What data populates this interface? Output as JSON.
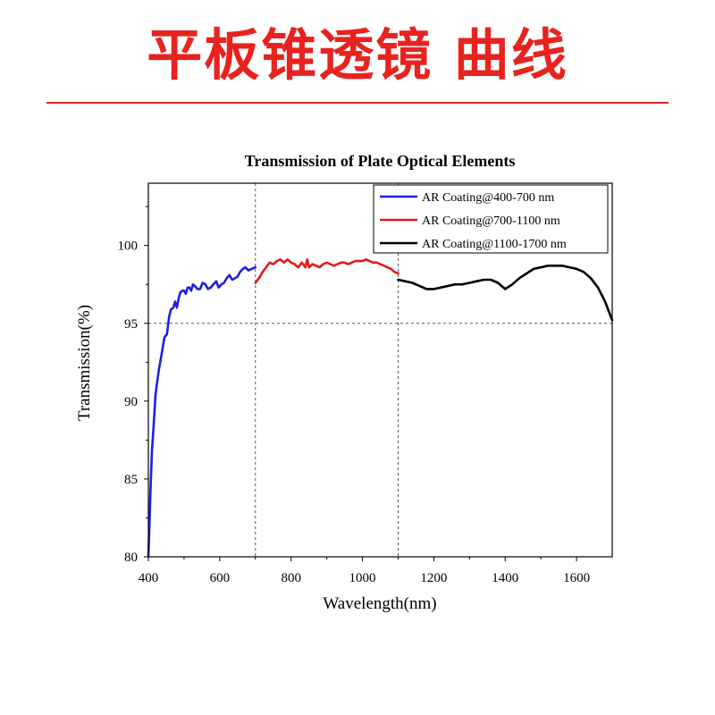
{
  "banner": {
    "title": "平板锥透镜 曲线",
    "accent_color": "#e8231f"
  },
  "chart_data": {
    "type": "line",
    "title": "Transmission of Plate Optical Elements",
    "xlabel": "Wavelength(nm)",
    "ylabel": "Transmission(%)",
    "xlim": [
      400,
      1700
    ],
    "ylim": [
      80,
      104
    ],
    "x_ticks": [
      400,
      600,
      800,
      1000,
      1200,
      1400,
      1600
    ],
    "y_ticks": [
      80,
      85,
      90,
      95,
      100
    ],
    "reference_lines": {
      "x": [
        700,
        1100
      ],
      "y": [
        95
      ]
    },
    "legend_position": "top-right",
    "grid": false,
    "series": [
      {
        "name": "AR Coating@400-700 nm",
        "color": "#1f1fe0",
        "x": [
          400,
          403,
          406,
          410,
          415,
          420,
          425,
          430,
          437,
          445,
          452,
          458,
          463,
          470,
          475,
          480,
          485,
          490,
          496,
          500,
          505,
          510,
          515,
          520,
          525,
          530,
          538,
          545,
          552,
          560,
          567,
          575,
          582,
          590,
          597,
          605,
          612,
          620,
          627,
          635,
          643,
          650,
          657,
          665,
          672,
          680,
          690,
          700
        ],
        "y": [
          80.0,
          82.0,
          84.3,
          86.8,
          88.5,
          90.4,
          91.3,
          92.1,
          93.0,
          94.1,
          94.3,
          95.4,
          95.9,
          96.0,
          96.4,
          96.0,
          96.6,
          97.0,
          97.1,
          97.1,
          96.9,
          97.3,
          97.3,
          97.1,
          97.5,
          97.4,
          97.2,
          97.2,
          97.6,
          97.5,
          97.2,
          97.3,
          97.5,
          97.7,
          97.3,
          97.5,
          97.6,
          97.9,
          98.1,
          97.8,
          97.9,
          98.0,
          98.3,
          98.5,
          98.6,
          98.4,
          98.5,
          98.6
        ]
      },
      {
        "name": "AR Coating@700-1100 nm",
        "color": "#e21a1a",
        "x": [
          700,
          710,
          720,
          730,
          740,
          750,
          760,
          770,
          780,
          790,
          800,
          810,
          820,
          830,
          840,
          845,
          850,
          860,
          870,
          880,
          890,
          900,
          910,
          920,
          930,
          940,
          950,
          960,
          970,
          980,
          990,
          1000,
          1010,
          1020,
          1030,
          1040,
          1050,
          1060,
          1070,
          1080,
          1090,
          1100
        ],
        "y": [
          97.6,
          97.9,
          98.3,
          98.6,
          98.9,
          98.8,
          99.0,
          99.1,
          98.9,
          99.1,
          98.9,
          98.8,
          98.6,
          98.9,
          98.6,
          99.1,
          98.6,
          98.8,
          98.7,
          98.6,
          98.8,
          98.9,
          98.8,
          98.7,
          98.8,
          98.9,
          98.9,
          98.8,
          98.9,
          99.0,
          99.0,
          99.0,
          99.1,
          99.0,
          98.9,
          98.9,
          98.8,
          98.7,
          98.6,
          98.5,
          98.3,
          98.2
        ]
      },
      {
        "name": "AR Coating@1100-1700 nm",
        "color": "#000000",
        "x": [
          1100,
          1120,
          1140,
          1160,
          1180,
          1200,
          1220,
          1240,
          1260,
          1280,
          1300,
          1320,
          1340,
          1360,
          1380,
          1400,
          1420,
          1440,
          1460,
          1480,
          1500,
          1520,
          1540,
          1560,
          1580,
          1600,
          1620,
          1640,
          1660,
          1680,
          1700
        ],
        "y": [
          97.8,
          97.7,
          97.6,
          97.4,
          97.2,
          97.2,
          97.3,
          97.4,
          97.5,
          97.5,
          97.6,
          97.7,
          97.8,
          97.8,
          97.6,
          97.2,
          97.5,
          97.9,
          98.2,
          98.5,
          98.6,
          98.7,
          98.7,
          98.7,
          98.6,
          98.5,
          98.3,
          97.9,
          97.3,
          96.4,
          95.2
        ]
      }
    ]
  }
}
